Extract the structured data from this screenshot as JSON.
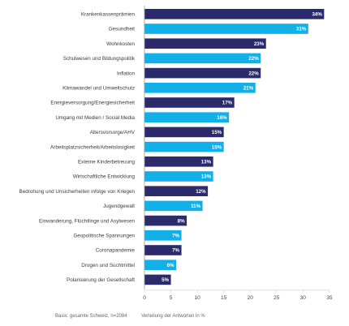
{
  "chart_data": {
    "type": "bar",
    "orientation": "horizontal",
    "categories": [
      "Krankenkassenprämien",
      "Gesundheit",
      "Wohnkosten",
      "Schulwesen und Bildungspolitik",
      "Inflation",
      "Klimawandel und Umweltschutz",
      "Energieversorgung/Energiesicherheit",
      "Umgang mit Medien / Social Media",
      "Altersvorsorge/AHV",
      "Arbeitsplatzsicherheit/Arbeitslosigkeit",
      "Externe Kinderbetreuung",
      "Wirtschaftliche Entwicklung",
      "Bedrohung und Unsicherheiten infolge von Kriegen",
      "Jugendgewalt",
      "Einwanderung, Flüchtlinge und Asylwesen",
      "Geopolitische Spannungen",
      "Coronapandemie",
      "Drogen und Suchtmittel",
      "Polarisierung der Gesellschaft"
    ],
    "values": [
      34,
      31,
      23,
      22,
      22,
      21,
      17,
      16,
      15,
      15,
      13,
      13,
      12,
      11,
      8,
      7,
      7,
      6,
      5
    ],
    "value_labels": [
      "34%",
      "31%",
      "23%",
      "22%",
      "22%",
      "21%",
      "17%",
      "16%",
      "15%",
      "15%",
      "13%",
      "13%",
      "12%",
      "11%",
      "8%",
      "7%",
      "7%",
      "6%",
      "5%"
    ],
    "bar_colors": [
      "dark",
      "light",
      "dark",
      "light",
      "dark",
      "light",
      "dark",
      "light",
      "dark",
      "light",
      "dark",
      "light",
      "dark",
      "light",
      "dark",
      "light",
      "dark",
      "light",
      "dark"
    ],
    "colors": {
      "dark": "#2b2a6b",
      "light": "#12b0e8",
      "axis": "#999999",
      "tick": "#cccccc"
    },
    "xlim": [
      0,
      35
    ],
    "xticks": [
      "0",
      "5",
      "10",
      "15",
      "20",
      "25",
      "30",
      "35"
    ],
    "xlabel": "Verteilung der Antworten in %",
    "footnote": "Basis: gesamte Schweiz, n=2084",
    "grid": false
  }
}
